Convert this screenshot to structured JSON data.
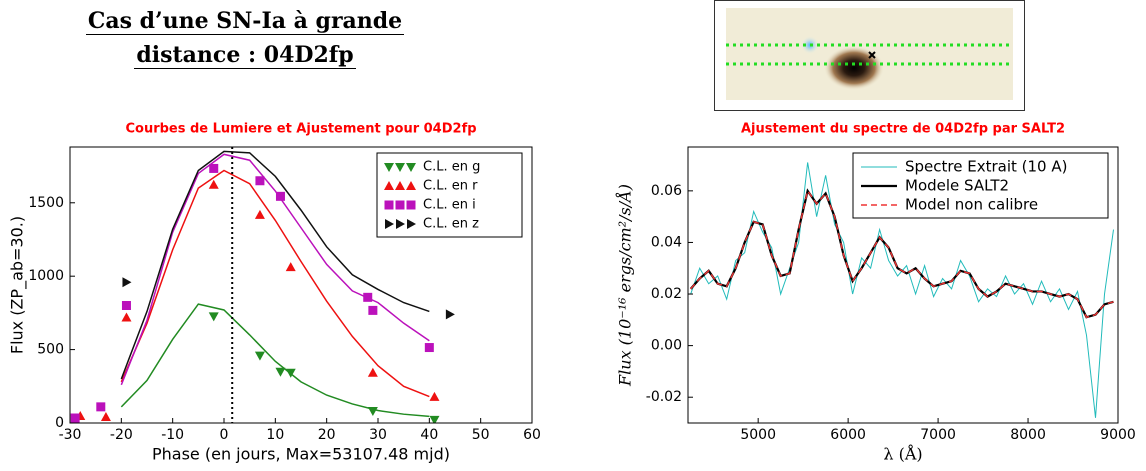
{
  "title": [
    "Cas d’une SN-Ia à grande",
    "distance : 04D2fp"
  ],
  "chart_data": [
    {
      "type": "scatter",
      "title": "Courbes de Lumiere et Ajustement pour 04D2fp",
      "xlabel": "Phase (en jours, Max=53107.48 mjd)",
      "ylabel": "Flux (ZP_ab=30.)",
      "xlim": [
        -30,
        60
      ],
      "xticks": [
        -30,
        -20,
        -10,
        0,
        10,
        20,
        30,
        40,
        50,
        60
      ],
      "ylim": [
        0,
        1880
      ],
      "yticks": [
        0,
        500,
        1000,
        1500
      ],
      "vline": 1.6,
      "legend": "upper right",
      "fit_x": [
        -20,
        -15,
        -10,
        -5,
        0,
        5,
        10,
        15,
        20,
        25,
        30,
        35,
        40
      ],
      "series": [
        {
          "name": "C.L. en g",
          "color": "#228b22",
          "marker": "v",
          "x": [
            -2,
            7,
            11,
            13,
            29,
            41
          ],
          "values": [
            726,
            459,
            349,
            342,
            82,
            21
          ],
          "fit": [
            110,
            290,
            570,
            810,
            770,
            600,
            420,
            280,
            190,
            130,
            85,
            60,
            45
          ]
        },
        {
          "name": "C.L. en r",
          "color": "#ee1111",
          "marker": "^",
          "x": [
            -28,
            -23,
            -19,
            -2,
            7,
            13,
            29,
            41
          ],
          "values": [
            48,
            41,
            719,
            1623,
            1418,
            1062,
            342,
            178
          ],
          "fit": [
            280,
            680,
            1180,
            1600,
            1720,
            1630,
            1380,
            1100,
            830,
            590,
            390,
            250,
            180
          ]
        },
        {
          "name": "C.L. en i",
          "color": "#bb11bb",
          "marker": "s",
          "x": [
            -29,
            -24,
            -19,
            -2,
            7,
            11,
            28,
            29,
            40
          ],
          "values": [
            34,
            110,
            800,
            1734,
            1650,
            1544,
            856,
            767,
            514
          ],
          "fit": [
            260,
            700,
            1300,
            1700,
            1830,
            1790,
            1580,
            1330,
            1080,
            900,
            820,
            680,
            560
          ]
        },
        {
          "name": "C.L. en z",
          "color": "#111111",
          "marker": ">",
          "x": [
            -19,
            44
          ],
          "values": [
            959,
            740
          ],
          "fit": [
            300,
            760,
            1320,
            1720,
            1850,
            1840,
            1680,
            1450,
            1200,
            1010,
            910,
            820,
            760
          ]
        }
      ]
    },
    {
      "type": "line",
      "title": "Ajustement du spectre de 04D2fp par SALT2",
      "xlabel": "λ (Å)",
      "ylabel": "Flux (10⁻¹⁶ ergs/cm²/s/Å)",
      "xlim": [
        4220,
        9000
      ],
      "xticks": [
        5000,
        6000,
        7000,
        8000,
        9000
      ],
      "ylim": [
        -0.03,
        0.077
      ],
      "yticks": [
        -0.02,
        {
          "value": 0,
          "label": "0.00"
        },
        0.02,
        0.04,
        0.06
      ],
      "legend": "upper right",
      "x": [
        4250,
        4350,
        4450,
        4550,
        4650,
        4750,
        4850,
        4950,
        5050,
        5150,
        5250,
        5350,
        5450,
        5550,
        5650,
        5750,
        5850,
        5950,
        6050,
        6150,
        6250,
        6350,
        6450,
        6550,
        6650,
        6750,
        6850,
        6950,
        7050,
        7150,
        7250,
        7350,
        7450,
        7550,
        7650,
        7750,
        7850,
        7950,
        8050,
        8150,
        8250,
        8350,
        8450,
        8550,
        8650,
        8750,
        8850,
        8950
      ],
      "series": [
        {
          "name": "Spectre Extrait (10 A)",
          "color": "#22bbbb",
          "dash": false,
          "width": 1,
          "values": [
            0.02,
            0.03,
            0.024,
            0.027,
            0.018,
            0.033,
            0.036,
            0.052,
            0.044,
            0.038,
            0.02,
            0.03,
            0.04,
            0.071,
            0.05,
            0.066,
            0.047,
            0.04,
            0.02,
            0.034,
            0.03,
            0.045,
            0.033,
            0.027,
            0.031,
            0.02,
            0.031,
            0.019,
            0.026,
            0.022,
            0.033,
            0.027,
            0.017,
            0.022,
            0.019,
            0.027,
            0.02,
            0.024,
            0.016,
            0.025,
            0.017,
            0.022,
            0.014,
            0.021,
            0.004,
            -0.028,
            0.02,
            0.045
          ]
        },
        {
          "name": "Modele SALT2",
          "color": "#000000",
          "dash": false,
          "width": 2.2,
          "values": [
            0.022,
            0.026,
            0.029,
            0.024,
            0.023,
            0.03,
            0.04,
            0.048,
            0.047,
            0.035,
            0.027,
            0.028,
            0.045,
            0.06,
            0.055,
            0.059,
            0.05,
            0.035,
            0.025,
            0.03,
            0.036,
            0.042,
            0.038,
            0.03,
            0.028,
            0.03,
            0.026,
            0.023,
            0.024,
            0.025,
            0.029,
            0.028,
            0.022,
            0.019,
            0.021,
            0.024,
            0.023,
            0.022,
            0.021,
            0.021,
            0.02,
            0.019,
            0.02,
            0.018,
            0.011,
            0.012,
            0.016,
            0.017
          ]
        },
        {
          "name": "Model non calibre",
          "color": "#ee3333",
          "dash": true,
          "width": 1.4,
          "values": [
            0.022,
            0.026,
            0.029,
            0.024,
            0.023,
            0.03,
            0.04,
            0.048,
            0.047,
            0.035,
            0.027,
            0.028,
            0.045,
            0.06,
            0.055,
            0.059,
            0.05,
            0.035,
            0.025,
            0.03,
            0.036,
            0.042,
            0.038,
            0.03,
            0.028,
            0.03,
            0.026,
            0.023,
            0.024,
            0.025,
            0.029,
            0.028,
            0.022,
            0.019,
            0.021,
            0.024,
            0.023,
            0.022,
            0.021,
            0.021,
            0.02,
            0.019,
            0.02,
            0.018,
            0.011,
            0.012,
            0.016,
            0.017
          ]
        }
      ]
    }
  ]
}
